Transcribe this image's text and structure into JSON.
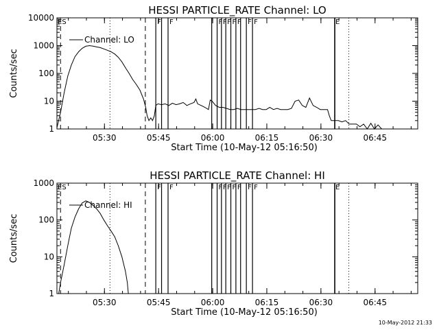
{
  "start_time": "10-May-12 05:16:50",
  "timestamp": "10-May-2012 21:33",
  "chart_data": [
    {
      "type": "line",
      "title": "HESSI PARTICLE_RATE Channel: LO",
      "xlabel": "Start Time (10-May-12 05:16:50)",
      "ylabel": "Counts/sec",
      "yscale": "log",
      "ylim": [
        1,
        10000
      ],
      "xlim_minutes": [
        0,
        100
      ],
      "xtick_labels": [
        "05:30",
        "05:45",
        "06:00",
        "06:15",
        "06:30",
        "06:45"
      ],
      "xtick_minutes": [
        13.17,
        28.17,
        43.17,
        58.17,
        73.17,
        88.17
      ],
      "ytick_labels": [
        "1",
        "10",
        "100",
        "1000",
        "10000"
      ],
      "ytick_values": [
        1,
        10,
        100,
        1000,
        10000
      ],
      "legend": "Channel: LO",
      "legend_position": "top-left",
      "series": [
        {
          "name": "Channel: LO",
          "x": [
            0,
            1,
            2,
            3,
            4,
            5,
            6,
            7,
            8,
            9,
            10,
            11,
            12,
            13,
            14,
            15,
            16,
            17,
            18,
            19,
            20,
            21,
            22,
            23,
            24,
            24.6,
            25,
            25.5,
            26,
            26.5,
            27,
            27.4,
            28,
            29,
            30,
            31,
            32,
            33,
            34,
            35,
            36,
            37,
            38,
            38.5,
            39,
            40,
            41,
            42,
            42.5,
            43,
            44,
            45,
            46,
            47,
            48,
            49,
            50,
            51,
            52,
            53,
            54,
            55,
            56,
            57,
            58,
            59,
            60,
            61,
            62,
            63,
            64,
            65,
            66,
            67,
            68,
            69,
            70,
            71,
            72,
            73,
            74,
            75,
            75.5,
            76,
            77,
            78,
            79,
            80,
            81,
            82,
            83,
            84,
            85,
            86,
            87,
            88,
            89,
            90,
            91
          ],
          "y": [
            1.1,
            4,
            20,
            80,
            200,
            400,
            600,
            800,
            950,
            1000,
            960,
            900,
            850,
            760,
            680,
            600,
            500,
            380,
            260,
            160,
            100,
            60,
            40,
            25,
            12,
            6,
            3,
            2,
            2.5,
            2,
            3,
            7,
            8,
            7.5,
            8,
            7,
            8.5,
            7.5,
            8,
            9,
            7,
            8,
            9,
            12,
            8,
            7,
            6,
            5,
            11,
            10,
            7,
            6,
            6,
            5.5,
            5,
            5,
            5.5,
            5,
            5,
            5,
            5,
            5,
            5.5,
            5,
            5,
            6,
            5,
            5.5,
            5,
            5,
            5,
            5.5,
            10,
            11,
            7,
            6,
            13,
            7,
            6,
            5,
            5,
            5,
            3,
            2,
            2,
            2,
            1.8,
            2,
            1.5,
            1.5,
            1.5,
            1.2,
            1.5,
            1,
            1.6,
            1,
            1.4,
            1,
            1
          ]
        }
      ]
    },
    {
      "type": "line",
      "title": "HESSI PARTICLE_RATE Channel: HI",
      "xlabel": "Start Time (10-May-12 05:16:50)",
      "ylabel": "Counts/sec",
      "yscale": "log",
      "ylim": [
        1,
        1000
      ],
      "xlim_minutes": [
        0,
        100
      ],
      "xtick_labels": [
        "05:30",
        "05:45",
        "06:00",
        "06:15",
        "06:30",
        "06:45"
      ],
      "xtick_minutes": [
        13.17,
        28.17,
        43.17,
        58.17,
        73.17,
        88.17
      ],
      "ytick_labels": [
        "1",
        "10",
        "100",
        "1000"
      ],
      "ytick_values": [
        1,
        10,
        100,
        1000
      ],
      "legend": "Channel: HI",
      "legend_position": "top-left",
      "series": [
        {
          "name": "Channel: HI",
          "x": [
            0.5,
            1,
            2,
            3,
            4,
            5,
            6,
            7,
            8,
            9,
            10,
            11,
            12,
            13,
            14,
            15,
            16,
            17,
            18,
            19,
            19.5,
            19.8
          ],
          "y": [
            1,
            2,
            6,
            20,
            60,
            120,
            200,
            290,
            330,
            300,
            250,
            200,
            150,
            100,
            70,
            50,
            35,
            20,
            10,
            4,
            2,
            1
          ]
        }
      ]
    }
  ],
  "markers": {
    "dashed_minutes": [
      1,
      24.5
    ],
    "dotted_minutes": [
      14.7,
      80.9
    ],
    "thick_solid_minutes": [
      77
    ],
    "flag_lines": [
      {
        "minute": 27.4,
        "label": "F"
      },
      {
        "minute": 29.0,
        "label": ""
      },
      {
        "minute": 30.8,
        "label": "F"
      },
      {
        "minute": 42.9,
        "label": ""
      },
      {
        "minute": 44.4,
        "label": "F"
      },
      {
        "minute": 45.6,
        "label": "F"
      },
      {
        "minute": 46.8,
        "label": "F"
      },
      {
        "minute": 48.2,
        "label": "F"
      },
      {
        "minute": 49.6,
        "label": "F"
      },
      {
        "minute": 50.9,
        "label": ""
      },
      {
        "minute": 52.5,
        "label": "F"
      },
      {
        "minute": 54.2,
        "label": "F"
      }
    ],
    "labels": [
      {
        "minute": 0,
        "text": "ES"
      },
      {
        "minute": 77,
        "text": "E"
      }
    ]
  }
}
